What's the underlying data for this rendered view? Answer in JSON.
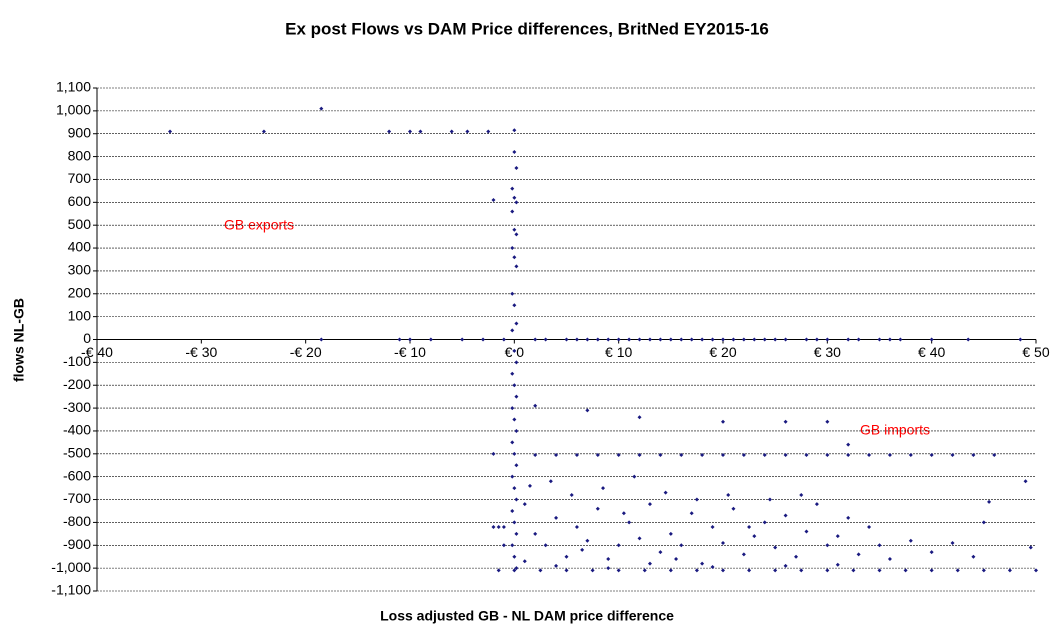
{
  "chart_data": {
    "type": "scatter",
    "title": "Ex post Flows vs DAM Price differences, BritNed EY2015-16",
    "x_label": "Loss adjusted GB - NL DAM price difference",
    "y_label": "flows NL-GB",
    "annotations": [
      "GB exports",
      "GB imports"
    ],
    "color": "#1a1a80",
    "grid": true,
    "xlim": [
      -40,
      50
    ],
    "xticks": [
      {
        "value": -40,
        "label": "-€ 40"
      },
      {
        "value": -30,
        "label": "-€ 30"
      },
      {
        "value": -20,
        "label": "-€ 20"
      },
      {
        "value": -10,
        "label": "-€ 10"
      },
      {
        "value": 0,
        "label": "€ 0"
      },
      {
        "value": 10,
        "label": "€ 10"
      },
      {
        "value": 20,
        "label": "€ 20"
      },
      {
        "value": 30,
        "label": "€ 30"
      },
      {
        "value": 40,
        "label": "€ 40"
      },
      {
        "value": 50,
        "label": "€ 50"
      }
    ],
    "ylim": [
      -1100,
      1100
    ],
    "yticks": [
      {
        "value": 1100,
        "label": "1,100"
      },
      {
        "value": 1000,
        "label": "1,000"
      },
      900,
      800,
      700,
      600,
      500,
      400,
      300,
      200,
      100,
      0,
      -100,
      -200,
      -300,
      -400,
      -500,
      -600,
      -700,
      -800,
      -900,
      {
        "value": -1000,
        "label": "-1,000"
      },
      {
        "value": -1100,
        "label": "-1,100"
      }
    ],
    "x": [
      -33,
      -24,
      -18.5,
      -12,
      -10,
      -9,
      -6,
      -4.5,
      -2.5,
      0,
      -2,
      0,
      0.2,
      -0.2,
      0,
      0.2,
      -0.2,
      0,
      0.2,
      -0.2,
      0,
      0.2,
      -0.2,
      0,
      0.2,
      -0.2,
      0,
      0.2,
      -0.2,
      0,
      0.2,
      -0.2,
      0,
      0.2,
      -0.2,
      0,
      0.2,
      -0.2,
      0,
      0.2,
      -0.2,
      0,
      0.2,
      -0.2,
      0,
      0.2,
      -18.5,
      -11,
      -10,
      -8,
      -5,
      -3,
      -1,
      2,
      3,
      5,
      6,
      7,
      8,
      9,
      10,
      11,
      12,
      13,
      14,
      15,
      16,
      17,
      18,
      19,
      20,
      21,
      22,
      23,
      24,
      25,
      26,
      28,
      29,
      30,
      32,
      33,
      35,
      36,
      37,
      40,
      43.5,
      48.5,
      2,
      4,
      6,
      8,
      10,
      12,
      14,
      16,
      18,
      20,
      22,
      24,
      26,
      28,
      30,
      32,
      34,
      36,
      38,
      40,
      42,
      44,
      46,
      0,
      2.5,
      5,
      7.5,
      10,
      12.5,
      15,
      17.5,
      20,
      22.5,
      25,
      27.5,
      30,
      32.5,
      35,
      37.5,
      40,
      42.5,
      45,
      47.5,
      50,
      1,
      2,
      3,
      4,
      5,
      6,
      7,
      8,
      9,
      10,
      11,
      12,
      13,
      14,
      15,
      16,
      17,
      18,
      19,
      20,
      21,
      22,
      23,
      24,
      25,
      26,
      27,
      28,
      29,
      30,
      31,
      32,
      33,
      34,
      35,
      36,
      38,
      40,
      42,
      1.5,
      3.5,
      5.5,
      8.5,
      11.5,
      14.5,
      17.5,
      20.5,
      24.5,
      27.5,
      1,
      4,
      9,
      13,
      19,
      26,
      31,
      6.5,
      15.5,
      22.5,
      10.5,
      -2,
      2,
      7,
      12,
      20,
      26,
      30,
      32,
      49,
      49.5,
      45.5,
      45,
      44,
      -1.5,
      -1,
      -2,
      -1.5,
      -1
    ],
    "values": [
      910,
      910,
      1010,
      910,
      910,
      910,
      910,
      910,
      910,
      915,
      610,
      820,
      750,
      660,
      620,
      600,
      560,
      480,
      460,
      400,
      360,
      320,
      200,
      150,
      70,
      40,
      -50,
      -100,
      -150,
      -200,
      -250,
      -300,
      -350,
      -400,
      -450,
      -500,
      -550,
      -600,
      -650,
      -700,
      -750,
      -800,
      -850,
      -900,
      -950,
      -1000,
      0,
      0,
      0,
      0,
      0,
      0,
      0,
      0,
      0,
      0,
      0,
      0,
      0,
      0,
      0,
      0,
      0,
      0,
      0,
      0,
      0,
      0,
      0,
      0,
      0,
      0,
      0,
      0,
      0,
      0,
      0,
      0,
      0,
      0,
      0,
      0,
      0,
      0,
      0,
      0,
      0,
      0,
      -505,
      -505,
      -505,
      -505,
      -505,
      -505,
      -505,
      -505,
      -505,
      -505,
      -505,
      -505,
      -505,
      -505,
      -505,
      -505,
      -505,
      -505,
      -505,
      -505,
      -505,
      -505,
      -505,
      -1010,
      -1010,
      -1010,
      -1010,
      -1010,
      -1010,
      -1010,
      -1010,
      -1010,
      -1010,
      -1010,
      -1010,
      -1010,
      -1010,
      -1010,
      -1010,
      -1010,
      -1010,
      -1010,
      -1010,
      -1010,
      -720,
      -850,
      -900,
      -780,
      -950,
      -820,
      -880,
      -740,
      -960,
      -900,
      -800,
      -870,
      -720,
      -930,
      -850,
      -900,
      -760,
      -980,
      -820,
      -890,
      -740,
      -940,
      -860,
      -800,
      -910,
      -770,
      -950,
      -840,
      -720,
      -900,
      -860,
      -780,
      -940,
      -820,
      -900,
      -960,
      -880,
      -930,
      -890,
      -640,
      -620,
      -680,
      -650,
      -600,
      -670,
      -700,
      -680,
      -700,
      -680,
      -970,
      -990,
      -1000,
      -980,
      -995,
      -990,
      -985,
      -920,
      -960,
      -820,
      -760,
      -500,
      -290,
      -310,
      -340,
      -360,
      -360,
      -360,
      -460,
      -620,
      -910,
      -710,
      -800,
      -950,
      -1010,
      -900,
      -820,
      -820,
      -820
    ]
  }
}
